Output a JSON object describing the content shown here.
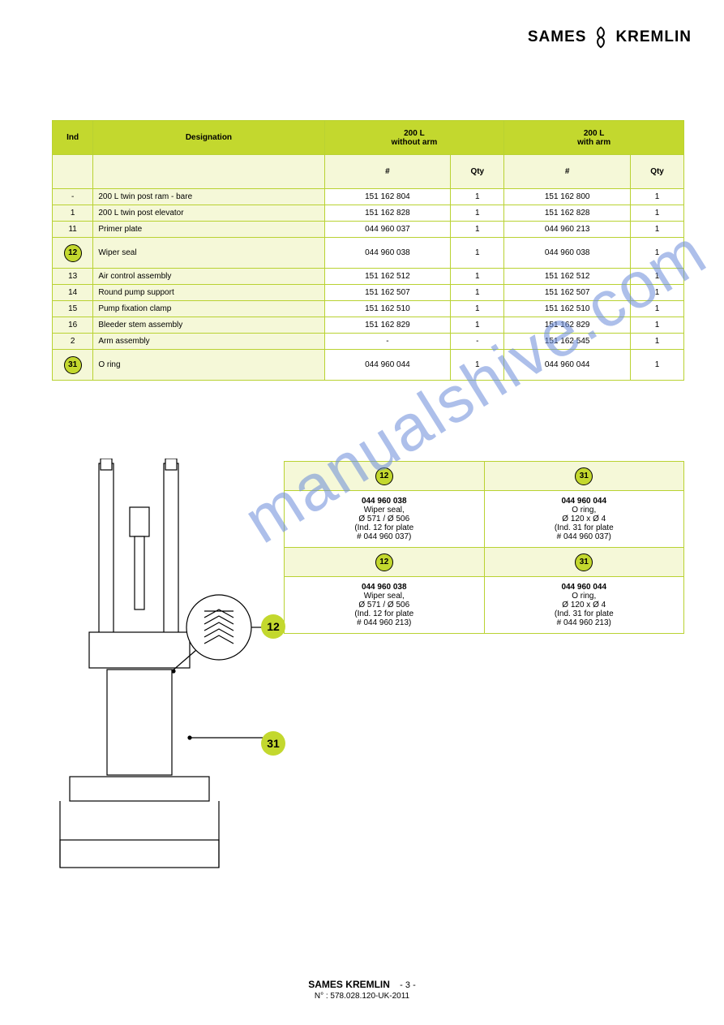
{
  "logo": {
    "left": "SAMES",
    "right": "KREMLIN"
  },
  "main_table": {
    "header": {
      "c1": "Ind",
      "c2": "Designation",
      "c3": "200 L\nwithout arm",
      "c4": "200 L\nwith arm"
    },
    "subheader": {
      "part": "#",
      "qty": "Qty"
    },
    "rows": [
      {
        "ind": "-",
        "desc": "200 L twin post ram - bare",
        "p1": "151 162 804",
        "q1": "1",
        "p2": "151 162 800",
        "q2": "1"
      },
      {
        "ind": "1",
        "desc": "200 L twin post elevator",
        "p1": "151 162 828",
        "q1": "1",
        "p2": "151 162 828",
        "q2": "1"
      },
      {
        "ind": "11",
        "desc": "Primer plate",
        "p1": "044 960 037",
        "q1": "1",
        "p2": "044 960 213",
        "q2": "1"
      },
      {
        "ind": "12",
        "circle": true,
        "desc": "Wiper seal",
        "p1": "044 960 038",
        "q1": "1",
        "p2": "044 960 038",
        "q2": "1"
      },
      {
        "ind": "13",
        "desc": "Air control assembly",
        "p1": "151 162 512",
        "q1": "1",
        "p2": "151 162 512",
        "q2": "1"
      },
      {
        "ind": "14",
        "desc": "Round pump support",
        "p1": "151 162 507",
        "q1": "1",
        "p2": "151 162 507",
        "q2": "1"
      },
      {
        "ind": "15",
        "desc": "Pump fixation clamp",
        "p1": "151 162 510",
        "q1": "1",
        "p2": "151 162 510",
        "q2": "1"
      },
      {
        "ind": "16",
        "desc": "Bleeder stem assembly",
        "p1": "151 162 829",
        "q1": "1",
        "p2": "151 162 829",
        "q2": "1"
      },
      {
        "ind": "2",
        "desc": "Arm assembly",
        "p1": "-",
        "q1": "-",
        "p2": "151 162 545",
        "q2": "1"
      },
      {
        "ind": "31",
        "circle": true,
        "desc": "O ring",
        "p1": "044 960 044",
        "q1": "1",
        "p2": "044 960 044",
        "q2": "1"
      }
    ]
  },
  "sub_table": {
    "head1": "12",
    "head2": "31",
    "cell_a": {
      "part": "044 960 038",
      "desc": "Wiper seal,\nØ 571 / Ø 506\n(Ind. 12 for plate\n# 044 960 037)"
    },
    "cell_b": {
      "part": "044 960 044",
      "desc": "O ring,\nØ 120 x Ø 4\n(Ind. 31 for plate\n# 044 960 037)"
    },
    "cell_c": {
      "part": "044 960 038",
      "desc": "Wiper seal,\nØ 571 / Ø 506\n(Ind. 12 for plate\n# 044 960 213)"
    },
    "cell_d": {
      "part": "044 960 044",
      "desc": "O ring,\nØ 120 x Ø 4\n(Ind. 31 for plate\n# 044 960 213)"
    }
  },
  "callouts": {
    "c12": "12",
    "c31": "31"
  },
  "watermark": "manualshive.com",
  "footer": {
    "company": "SAMES KREMLIN",
    "pageno": "- 3 -",
    "doc": "N° : 578.028.120-UK-2011"
  },
  "colors": {
    "green": "#c3d82e",
    "lightgreen": "#f5f8d8",
    "border": "#b9d232",
    "wm": "#6b8cd9"
  }
}
